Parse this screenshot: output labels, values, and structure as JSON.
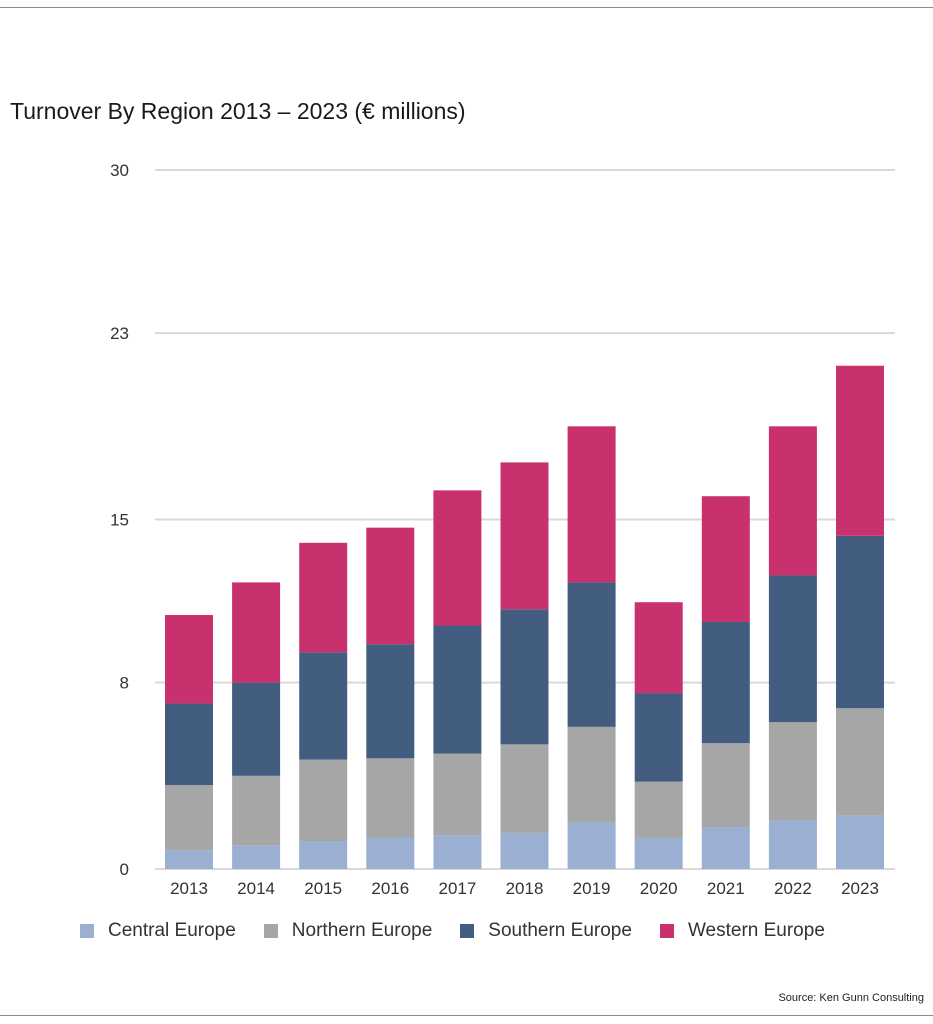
{
  "chart_data": {
    "type": "bar",
    "stacked": true,
    "title": "Turnover By Region 2013 – 2023 (€ millions)",
    "xlabel": "",
    "ylabel": "",
    "categories": [
      "2013",
      "2014",
      "2015",
      "2016",
      "2017",
      "2018",
      "2019",
      "2020",
      "2021",
      "2022",
      "2023"
    ],
    "ylim": [
      0,
      30
    ],
    "yticks": [
      0,
      8,
      15,
      23,
      30
    ],
    "grid": true,
    "legend_position": "bottom",
    "series": [
      {
        "name": "Central Europe",
        "color": "#9aafd1",
        "values": [
          0.8,
          1.0,
          1.2,
          1.35,
          1.45,
          1.55,
          2.0,
          1.35,
          1.8,
          2.1,
          2.3
        ]
      },
      {
        "name": "Northern Europe",
        "color": "#a6a6a6",
        "values": [
          2.8,
          3.0,
          3.5,
          3.4,
          3.5,
          3.8,
          4.1,
          2.4,
          3.6,
          4.2,
          4.6
        ]
      },
      {
        "name": "Southern Europe",
        "color": "#425d80",
        "values": [
          3.5,
          4.0,
          4.6,
          4.9,
          5.5,
          5.8,
          6.2,
          3.8,
          5.2,
          6.3,
          7.4
        ]
      },
      {
        "name": "Western Europe",
        "color": "#c8316e",
        "values": [
          3.8,
          4.3,
          4.7,
          5.0,
          5.8,
          6.3,
          6.7,
          3.9,
          5.4,
          6.4,
          7.3
        ]
      }
    ]
  },
  "source_note": "Source: Ken Gunn Consulting"
}
